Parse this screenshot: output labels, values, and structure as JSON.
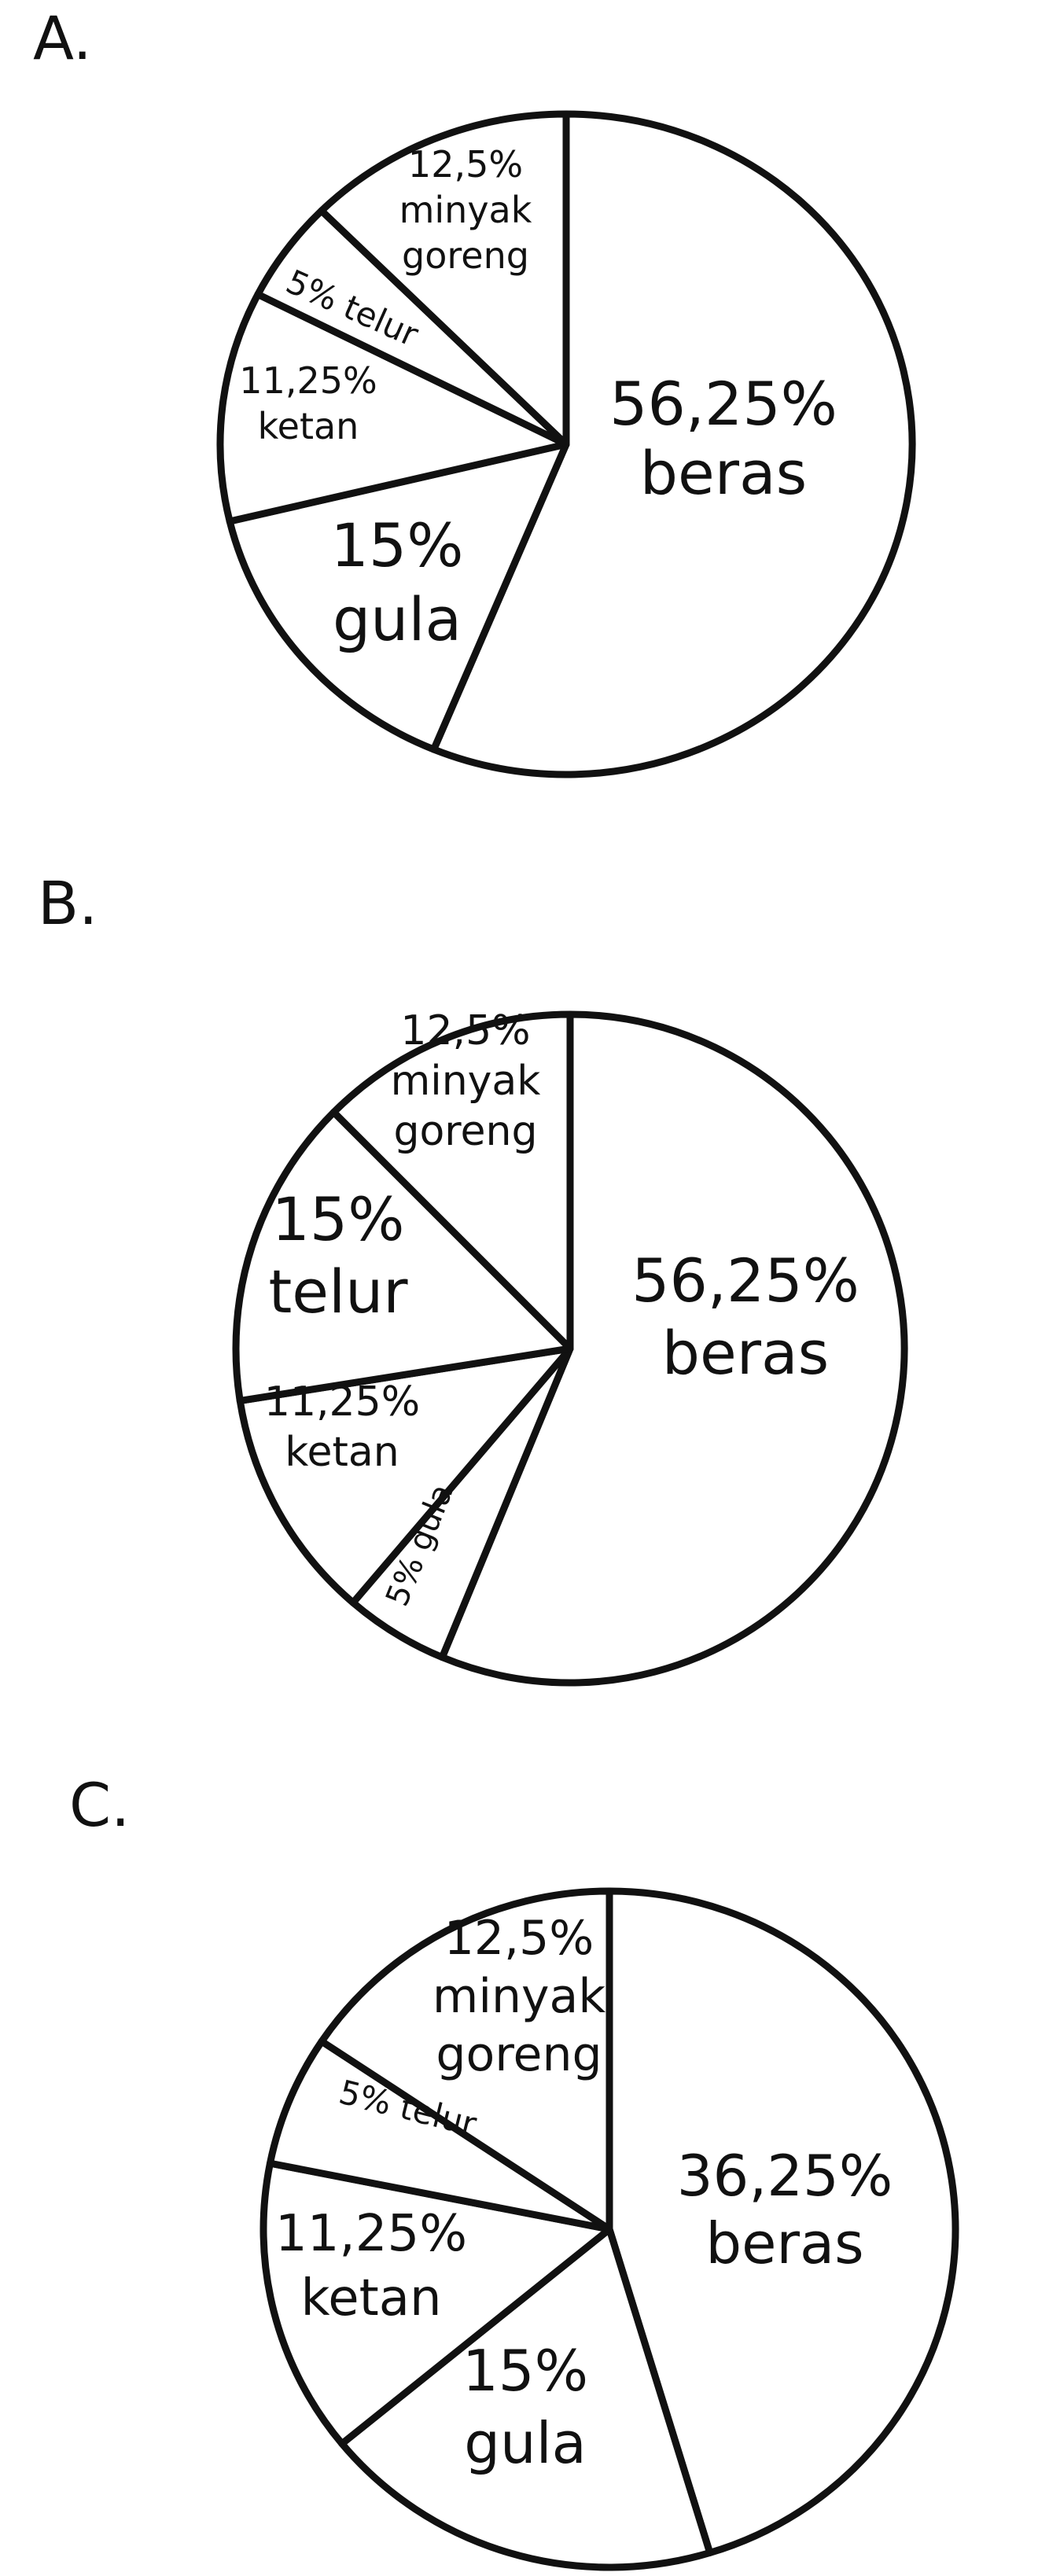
{
  "chart_data": [
    {
      "type": "pie",
      "option": "A.",
      "slices": [
        {
          "value": 56.25,
          "pct": "56,25%",
          "name": "beras"
        },
        {
          "value": 15,
          "pct": "15%",
          "name": "gula"
        },
        {
          "value": 11.25,
          "pct": "11,25%",
          "name": "ketan"
        },
        {
          "value": 5,
          "pct": "5% telur",
          "name": ""
        },
        {
          "value": 12.5,
          "pct": "12,5%",
          "name": "minyak goreng"
        }
      ]
    },
    {
      "type": "pie",
      "option": "B.",
      "slices": [
        {
          "value": 56.25,
          "pct": "56,25%",
          "name": "beras"
        },
        {
          "value": 5,
          "pct": "5% gula",
          "name": ""
        },
        {
          "value": 11.25,
          "pct": "11,25%",
          "name": "ketan"
        },
        {
          "value": 15,
          "pct": "15%",
          "name": "telur"
        },
        {
          "value": 12.5,
          "pct": "12,5%",
          "name": "minyak goreng"
        }
      ]
    },
    {
      "type": "pie",
      "option": "C.",
      "slices": [
        {
          "value": 36.25,
          "pct": "36,25%",
          "name": "beras"
        },
        {
          "value": 15,
          "pct": "15%",
          "name": "gula"
        },
        {
          "value": 11.25,
          "pct": "11,25%",
          "name": "ketan"
        },
        {
          "value": 5,
          "pct": "5% telur",
          "name": ""
        },
        {
          "value": 12.5,
          "pct": "12,5%",
          "name": "minyak goreng"
        }
      ]
    }
  ]
}
